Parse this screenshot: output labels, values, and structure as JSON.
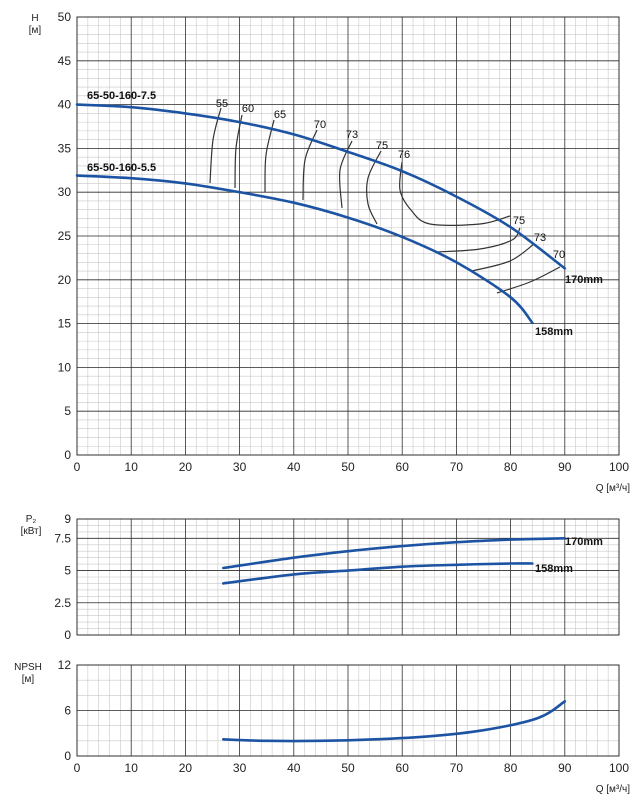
{
  "chart_data": [
    {
      "type": "line",
      "ylabel": "H",
      "yunit": "[м]",
      "xlabel": "Q [м³/ч]",
      "xlim": [
        0,
        100
      ],
      "ylim": [
        0,
        50
      ],
      "xticks": [
        0,
        10,
        20,
        30,
        40,
        50,
        60,
        70,
        80,
        90,
        100
      ],
      "yticks": [
        0,
        5,
        10,
        15,
        20,
        25,
        30,
        35,
        40,
        45,
        50
      ],
      "series": [
        {
          "name": "65-50-160-7.5",
          "end_label": "170mm",
          "x": [
            0,
            10,
            20,
            30,
            40,
            50,
            60,
            70,
            80,
            90
          ],
          "y": [
            40.0,
            39.7,
            39.0,
            38.0,
            36.6,
            34.6,
            32.4,
            29.5,
            26.0,
            21.3
          ]
        },
        {
          "name": "65-50-160-5.5",
          "end_label": "158mm",
          "x": [
            0,
            10,
            20,
            30,
            40,
            50,
            60,
            70,
            80,
            84
          ],
          "y": [
            31.9,
            31.6,
            31.0,
            30.0,
            28.8,
            27.1,
            24.9,
            22.0,
            18.0,
            15.1
          ]
        }
      ],
      "efficiency_labels": [
        "55",
        "60",
        "65",
        "70",
        "73",
        "75",
        "76",
        "75",
        "73",
        "70"
      ]
    },
    {
      "type": "line",
      "ylabel": "P₂",
      "yunit": "[кВт]",
      "xlim": [
        0,
        100
      ],
      "ylim": [
        0,
        9
      ],
      "yticks": [
        0,
        2.5,
        5,
        7.5,
        9
      ],
      "ytick_labels": [
        "0",
        "2.5",
        "5",
        "7.5",
        "9"
      ],
      "series": [
        {
          "name": "170mm",
          "x": [
            27,
            40,
            50,
            60,
            70,
            80,
            90
          ],
          "y": [
            5.2,
            6.0,
            6.5,
            6.9,
            7.2,
            7.4,
            7.5
          ]
        },
        {
          "name": "158mm",
          "x": [
            27,
            40,
            50,
            60,
            70,
            80,
            84
          ],
          "y": [
            4.0,
            4.7,
            5.0,
            5.3,
            5.45,
            5.55,
            5.55
          ]
        }
      ]
    },
    {
      "type": "line",
      "ylabel": "NPSH",
      "yunit": "[м]",
      "xlabel": "Q [м³/ч]",
      "xlim": [
        0,
        100
      ],
      "ylim": [
        0,
        12
      ],
      "xticks": [
        0,
        10,
        20,
        30,
        40,
        50,
        60,
        70,
        80,
        90,
        100
      ],
      "yticks": [
        0,
        6,
        12
      ],
      "series": [
        {
          "x": [
            27,
            35,
            45,
            55,
            65,
            75,
            85,
            90
          ],
          "y": [
            2.2,
            2.0,
            2.0,
            2.2,
            2.6,
            3.4,
            5.0,
            7.2
          ]
        }
      ]
    }
  ],
  "colors": {
    "curve": "#1c54a3",
    "grid_major": "#2f2f2f",
    "grid_minor": "#c8c8c8",
    "iso": "#333333"
  }
}
